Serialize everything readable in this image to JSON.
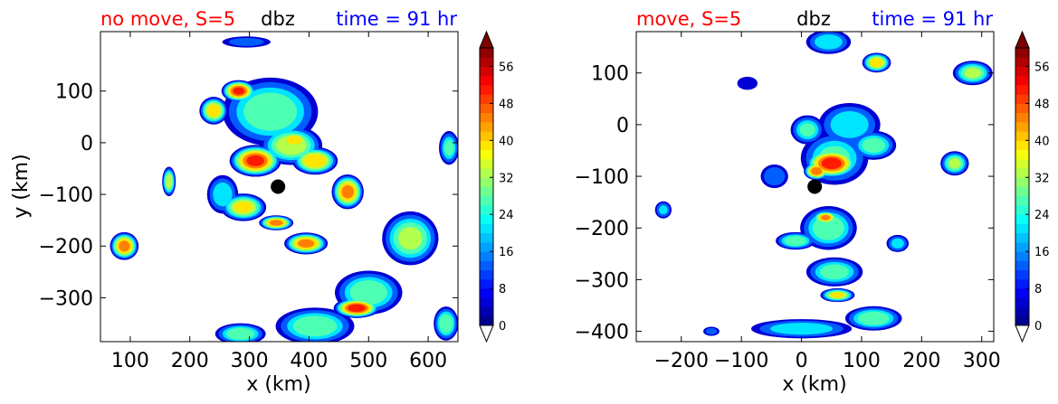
{
  "chart_data": [
    {
      "type": "contour",
      "variable": "dbz",
      "title_left": "no move, S=5",
      "title_center": "dbz",
      "title_right": "time = 91 hr",
      "title_left_color": "#ff0000",
      "title_right_color": "#0000ff",
      "xlabel": "x (km)",
      "ylabel": "y (km)",
      "xlim": [
        50,
        650
      ],
      "ylim": [
        -385,
        215
      ],
      "xticks": [
        100,
        200,
        300,
        400,
        500,
        600
      ],
      "xtick_labels": [
        "100",
        "200",
        "300",
        "400",
        "500",
        "600"
      ],
      "yticks": [
        100,
        0,
        -100,
        -200,
        -300
      ],
      "ytick_labels": [
        "100",
        "0",
        "−100",
        "−200",
        "−300"
      ],
      "center_marker": {
        "x": 348,
        "y": -85
      },
      "colorbar": {
        "range": [
          0,
          60
        ],
        "ticks": [
          0,
          8,
          16,
          24,
          32,
          40,
          48,
          56
        ],
        "tick_labels": [
          "0",
          "8",
          "16",
          "24",
          "32",
          "40",
          "48",
          "56"
        ],
        "extend": "both"
      },
      "cells": [
        {
          "x": 335,
          "y": 60,
          "rx": 85,
          "ry": 70,
          "peak": 30
        },
        {
          "x": 370,
          "y": -5,
          "rx": 55,
          "ry": 40,
          "peak": 35
        },
        {
          "x": 310,
          "y": -35,
          "rx": 45,
          "ry": 32,
          "peak": 50
        },
        {
          "x": 375,
          "y": 5,
          "rx": 28,
          "ry": 18,
          "peak": 42
        },
        {
          "x": 410,
          "y": -35,
          "rx": 40,
          "ry": 28,
          "peak": 42
        },
        {
          "x": 282,
          "y": 100,
          "rx": 30,
          "ry": 22,
          "peak": 50
        },
        {
          "x": 240,
          "y": 62,
          "rx": 25,
          "ry": 28,
          "peak": 40
        },
        {
          "x": 290,
          "y": -125,
          "rx": 40,
          "ry": 28,
          "peak": 38
        },
        {
          "x": 345,
          "y": -155,
          "rx": 30,
          "ry": 15,
          "peak": 45
        },
        {
          "x": 395,
          "y": -195,
          "rx": 38,
          "ry": 22,
          "peak": 45
        },
        {
          "x": 465,
          "y": -95,
          "rx": 28,
          "ry": 35,
          "peak": 45
        },
        {
          "x": 255,
          "y": -100,
          "rx": 28,
          "ry": 40,
          "peak": 24
        },
        {
          "x": 165,
          "y": -75,
          "rx": 12,
          "ry": 30,
          "peak": 35
        },
        {
          "x": 90,
          "y": -200,
          "rx": 25,
          "ry": 28,
          "peak": 45
        },
        {
          "x": 295,
          "y": 195,
          "rx": 45,
          "ry": 12,
          "peak": 15
        },
        {
          "x": 570,
          "y": -185,
          "rx": 50,
          "ry": 55,
          "peak": 32
        },
        {
          "x": 500,
          "y": -290,
          "rx": 60,
          "ry": 45,
          "peak": 30
        },
        {
          "x": 480,
          "y": -320,
          "rx": 40,
          "ry": 20,
          "peak": 52
        },
        {
          "x": 410,
          "y": -355,
          "rx": 70,
          "ry": 38,
          "peak": 30
        },
        {
          "x": 285,
          "y": -370,
          "rx": 45,
          "ry": 22,
          "peak": 30
        },
        {
          "x": 635,
          "y": -10,
          "rx": 18,
          "ry": 35,
          "peak": 26
        },
        {
          "x": 630,
          "y": -350,
          "rx": 22,
          "ry": 35,
          "peak": 30
        }
      ]
    },
    {
      "type": "contour",
      "variable": "dbz",
      "title_left": "move, S=5",
      "title_center": "dbz",
      "title_right": "time = 91 hr",
      "title_left_color": "#ff0000",
      "title_right_color": "#0000ff",
      "xlabel": "x (km)",
      "ylabel": "",
      "xlim": [
        -275,
        320
      ],
      "ylim": [
        -420,
        180
      ],
      "xticks": [
        -200,
        -100,
        0,
        100,
        200,
        300
      ],
      "xtick_labels": [
        "−200",
        "−100",
        "0",
        "100",
        "200",
        "300"
      ],
      "yticks": [
        100,
        0,
        -100,
        -200,
        -300,
        -400
      ],
      "ytick_labels": [
        "100",
        "0",
        "−100",
        "−200",
        "−300",
        "−400"
      ],
      "center_marker": {
        "x": 22,
        "y": -120
      },
      "colorbar": {
        "range": [
          0,
          60
        ],
        "ticks": [
          0,
          8,
          16,
          24,
          32,
          40,
          48,
          56
        ],
        "tick_labels": [
          "0",
          "8",
          "16",
          "24",
          "32",
          "40",
          "48",
          "56"
        ],
        "extend": "both"
      },
      "cells": [
        {
          "x": 55,
          "y": -65,
          "rx": 60,
          "ry": 55,
          "peak": 26
        },
        {
          "x": 50,
          "y": -75,
          "rx": 45,
          "ry": 30,
          "peak": 52
        },
        {
          "x": 25,
          "y": -90,
          "rx": 22,
          "ry": 18,
          "peak": 48
        },
        {
          "x": 80,
          "y": 0,
          "rx": 55,
          "ry": 45,
          "peak": 24
        },
        {
          "x": 120,
          "y": -40,
          "rx": 40,
          "ry": 30,
          "peak": 28
        },
        {
          "x": 10,
          "y": -10,
          "rx": 30,
          "ry": 30,
          "peak": 26
        },
        {
          "x": -45,
          "y": -100,
          "rx": 25,
          "ry": 25,
          "peak": 18
        },
        {
          "x": 45,
          "y": -200,
          "rx": 50,
          "ry": 45,
          "peak": 30
        },
        {
          "x": 40,
          "y": -180,
          "rx": 22,
          "ry": 14,
          "peak": 45
        },
        {
          "x": -10,
          "y": -225,
          "rx": 35,
          "ry": 18,
          "peak": 30
        },
        {
          "x": 55,
          "y": -285,
          "rx": 50,
          "ry": 30,
          "peak": 28
        },
        {
          "x": 60,
          "y": -330,
          "rx": 30,
          "ry": 14,
          "peak": 38
        },
        {
          "x": 120,
          "y": -375,
          "rx": 50,
          "ry": 25,
          "peak": 30
        },
        {
          "x": 0,
          "y": -395,
          "rx": 90,
          "ry": 20,
          "peak": 24
        },
        {
          "x": 45,
          "y": 160,
          "rx": 40,
          "ry": 25,
          "peak": 24
        },
        {
          "x": 125,
          "y": 120,
          "rx": 25,
          "ry": 20,
          "peak": 40
        },
        {
          "x": 285,
          "y": 100,
          "rx": 35,
          "ry": 25,
          "peak": 32
        },
        {
          "x": 255,
          "y": -75,
          "rx": 25,
          "ry": 25,
          "peak": 32
        },
        {
          "x": 160,
          "y": -230,
          "rx": 20,
          "ry": 18,
          "peak": 22
        },
        {
          "x": -90,
          "y": 80,
          "rx": 20,
          "ry": 15,
          "peak": 8
        },
        {
          "x": -230,
          "y": -165,
          "rx": 15,
          "ry": 18,
          "peak": 20
        },
        {
          "x": -150,
          "y": -400,
          "rx": 15,
          "ry": 10,
          "peak": 14
        }
      ]
    }
  ]
}
